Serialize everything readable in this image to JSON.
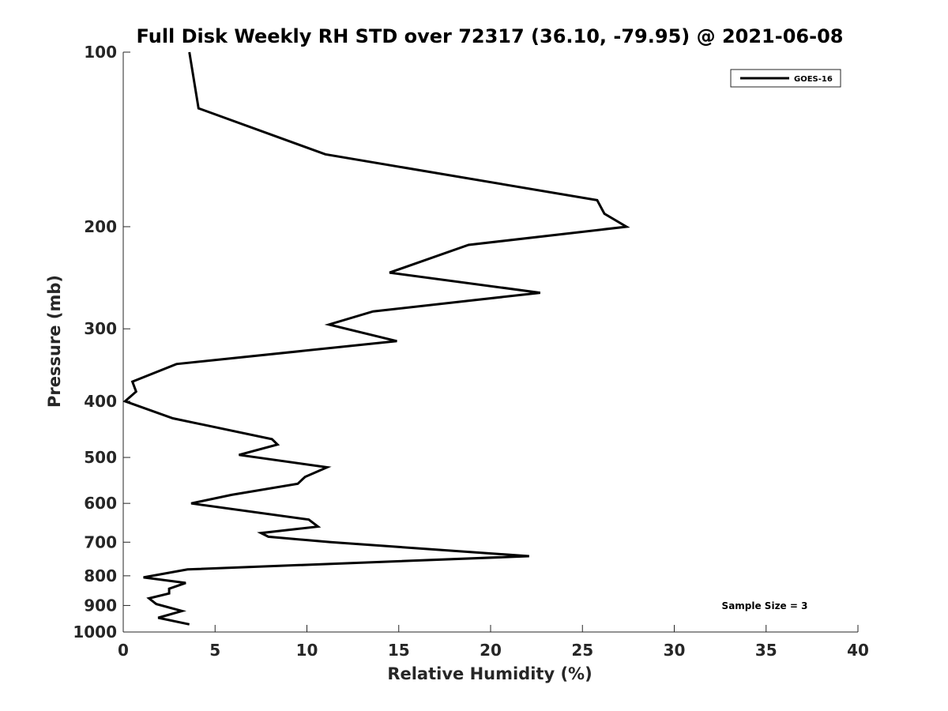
{
  "chart_data": {
    "type": "line",
    "title": "Full Disk Weekly RH STD over 72317 (36.10, -79.95) @ 2021-06-08",
    "xlabel": "Relative Humidity (%)",
    "ylabel": "Pressure (mb)",
    "xlim": [
      0,
      40
    ],
    "ylim": [
      100,
      1000
    ],
    "y_scale": "log",
    "y_reversed": true,
    "grid": false,
    "x_ticks": [
      0,
      5,
      10,
      15,
      20,
      25,
      30,
      35,
      40
    ],
    "y_ticks": [
      100,
      200,
      300,
      400,
      500,
      600,
      700,
      800,
      900,
      1000
    ],
    "legend_position": "top-right",
    "annotation": "Sample Size = 3",
    "series": [
      {
        "name": "GOES-16",
        "color": "#000000",
        "points": [
          [
            3.6,
            100
          ],
          [
            4.1,
            125
          ],
          [
            11.0,
            150
          ],
          [
            25.8,
            180
          ],
          [
            26.2,
            190
          ],
          [
            27.4,
            200
          ],
          [
            18.8,
            215
          ],
          [
            14.5,
            240
          ],
          [
            22.7,
            260
          ],
          [
            13.6,
            280
          ],
          [
            11.2,
            295
          ],
          [
            14.9,
            315
          ],
          [
            2.9,
            345
          ],
          [
            0.5,
            370
          ],
          [
            0.7,
            385
          ],
          [
            0.1,
            400
          ],
          [
            2.7,
            428
          ],
          [
            8.1,
            465
          ],
          [
            8.4,
            475
          ],
          [
            6.3,
            495
          ],
          [
            11.1,
            520
          ],
          [
            9.9,
            540
          ],
          [
            9.5,
            555
          ],
          [
            5.9,
            580
          ],
          [
            3.7,
            600
          ],
          [
            10.1,
            640
          ],
          [
            10.6,
            658
          ],
          [
            7.5,
            675
          ],
          [
            7.9,
            685
          ],
          [
            11.3,
            700
          ],
          [
            22.1,
            740
          ],
          [
            3.5,
            780
          ],
          [
            1.1,
            805
          ],
          [
            3.4,
            823
          ],
          [
            2.5,
            842
          ],
          [
            2.5,
            858
          ],
          [
            1.4,
            875
          ],
          [
            1.8,
            895
          ],
          [
            3.2,
            920
          ],
          [
            1.9,
            945
          ],
          [
            3.6,
            970
          ]
        ]
      }
    ]
  }
}
